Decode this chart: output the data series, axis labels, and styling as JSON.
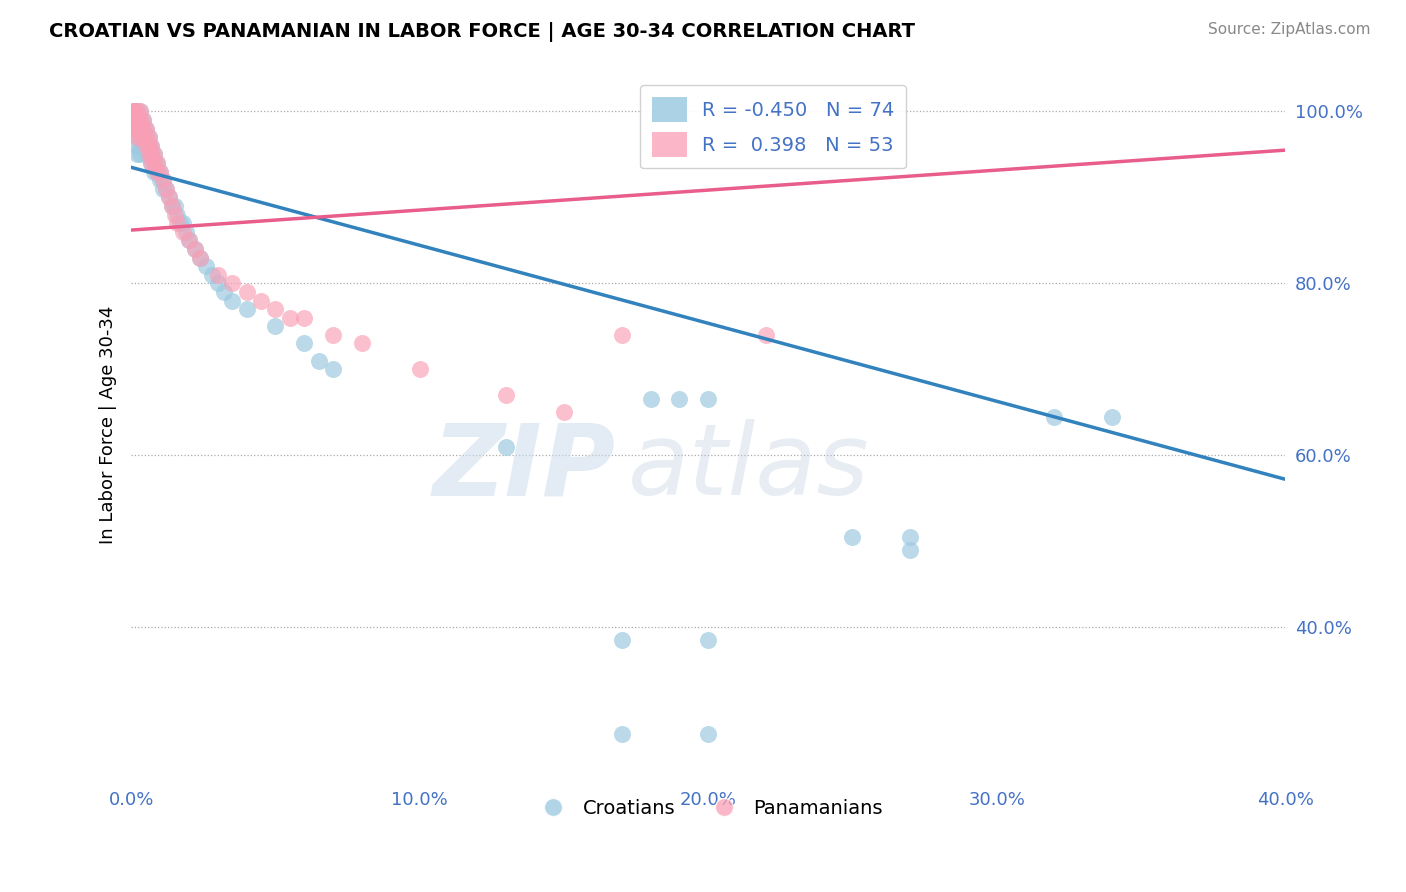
{
  "title": "CROATIAN VS PANAMANIAN IN LABOR FORCE | AGE 30-34 CORRELATION CHART",
  "source": "Source: ZipAtlas.com",
  "ylabel_label": "In Labor Force | Age 30-34",
  "xmin": 0.0,
  "xmax": 0.4,
  "ymin": 0.22,
  "ymax": 1.05,
  "blue_R": -0.45,
  "blue_N": 74,
  "pink_R": 0.398,
  "pink_N": 53,
  "blue_color": "#9ecae1",
  "pink_color": "#fa9fb5",
  "blue_line_color": "#3182bd",
  "pink_line_color": "#e85d8a",
  "blue_line_x0": 0.0,
  "blue_line_y0": 0.935,
  "blue_line_x1": 0.4,
  "blue_line_y1": 0.572,
  "pink_line_x0": 0.0,
  "pink_line_y0": 0.862,
  "pink_line_x1": 0.4,
  "pink_line_y1": 0.955,
  "blue_pts_x": [
    0.001,
    0.001,
    0.001,
    0.001,
    0.001,
    0.002,
    0.002,
    0.002,
    0.002,
    0.002,
    0.002,
    0.003,
    0.003,
    0.003,
    0.003,
    0.003,
    0.003,
    0.004,
    0.004,
    0.004,
    0.004,
    0.005,
    0.005,
    0.005,
    0.005,
    0.006,
    0.006,
    0.006,
    0.007,
    0.007,
    0.007,
    0.008,
    0.008,
    0.008,
    0.009,
    0.009,
    0.01,
    0.01,
    0.011,
    0.011,
    0.012,
    0.013,
    0.014,
    0.015,
    0.016,
    0.017,
    0.018,
    0.019,
    0.02,
    0.022,
    0.024,
    0.026,
    0.028,
    0.03,
    0.032,
    0.035,
    0.04,
    0.05,
    0.06,
    0.065,
    0.07,
    0.13,
    0.18,
    0.19,
    0.2,
    0.27,
    0.27,
    0.17,
    0.2,
    0.17,
    0.2,
    0.32,
    0.34,
    0.25
  ],
  "blue_pts_y": [
    1.0,
    1.0,
    1.0,
    0.99,
    0.98,
    1.0,
    0.99,
    0.98,
    0.97,
    0.96,
    0.95,
    1.0,
    0.99,
    0.98,
    0.97,
    0.96,
    0.95,
    0.99,
    0.98,
    0.97,
    0.96,
    0.98,
    0.97,
    0.96,
    0.95,
    0.97,
    0.96,
    0.95,
    0.96,
    0.95,
    0.94,
    0.95,
    0.94,
    0.93,
    0.94,
    0.93,
    0.93,
    0.92,
    0.92,
    0.91,
    0.91,
    0.9,
    0.89,
    0.89,
    0.88,
    0.87,
    0.87,
    0.86,
    0.85,
    0.84,
    0.83,
    0.82,
    0.81,
    0.8,
    0.79,
    0.78,
    0.77,
    0.75,
    0.73,
    0.71,
    0.7,
    0.61,
    0.665,
    0.665,
    0.665,
    0.505,
    0.49,
    0.385,
    0.385,
    0.275,
    0.275,
    0.645,
    0.645,
    0.505
  ],
  "pink_pts_x": [
    0.001,
    0.001,
    0.001,
    0.001,
    0.002,
    0.002,
    0.002,
    0.002,
    0.003,
    0.003,
    0.003,
    0.003,
    0.004,
    0.004,
    0.004,
    0.005,
    0.005,
    0.005,
    0.006,
    0.006,
    0.006,
    0.007,
    0.007,
    0.007,
    0.008,
    0.008,
    0.009,
    0.009,
    0.01,
    0.011,
    0.012,
    0.013,
    0.014,
    0.015,
    0.016,
    0.018,
    0.02,
    0.022,
    0.024,
    0.03,
    0.04,
    0.06,
    0.08,
    0.1,
    0.13,
    0.15,
    0.05,
    0.07,
    0.17,
    0.22,
    0.035,
    0.045,
    0.055
  ],
  "pink_pts_y": [
    1.0,
    1.0,
    0.99,
    0.98,
    1.0,
    0.99,
    0.98,
    0.97,
    1.0,
    0.99,
    0.98,
    0.97,
    0.99,
    0.98,
    0.97,
    0.98,
    0.97,
    0.96,
    0.97,
    0.96,
    0.95,
    0.96,
    0.95,
    0.94,
    0.95,
    0.94,
    0.94,
    0.93,
    0.93,
    0.92,
    0.91,
    0.9,
    0.89,
    0.88,
    0.87,
    0.86,
    0.85,
    0.84,
    0.83,
    0.81,
    0.79,
    0.76,
    0.73,
    0.7,
    0.67,
    0.65,
    0.77,
    0.74,
    0.74,
    0.74,
    0.8,
    0.78,
    0.76
  ]
}
